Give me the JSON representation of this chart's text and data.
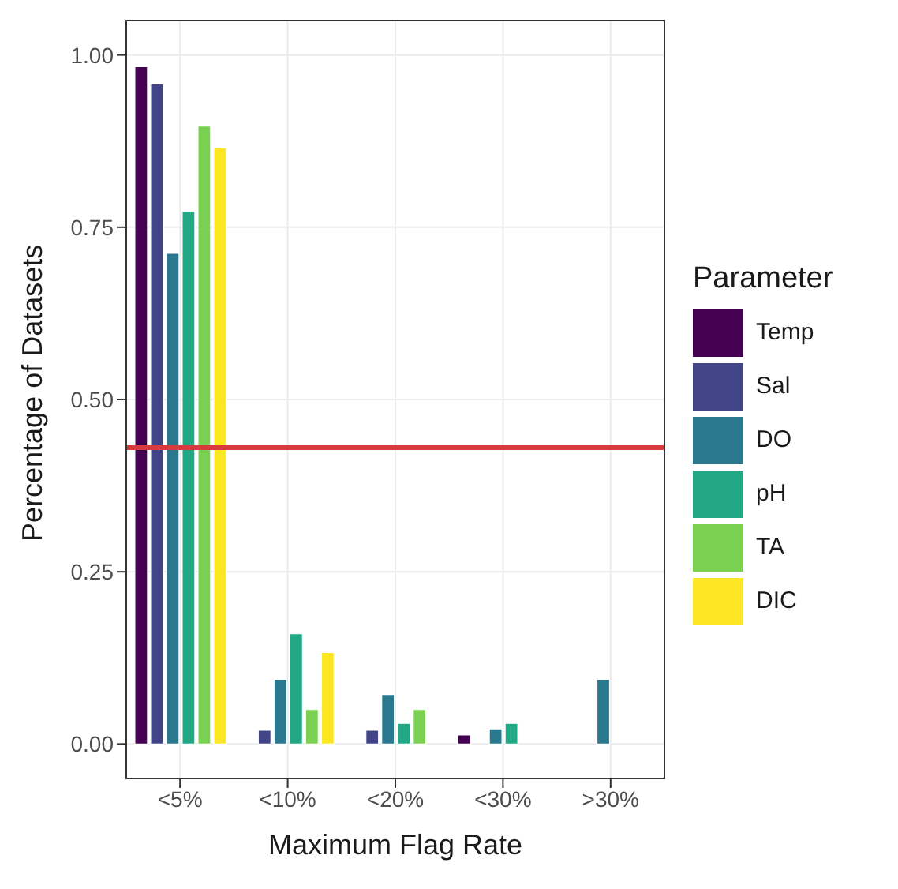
{
  "chart_data": {
    "type": "bar",
    "xlabel": "Maximum Flag Rate",
    "ylabel": "Percentage of Datasets",
    "legend_title": "Parameter",
    "categories": [
      "<5%",
      "<10%",
      "<20%",
      "<30%",
      ">30%"
    ],
    "series": [
      {
        "name": "Temp",
        "color": "#440154",
        "values": [
          0.983,
          null,
          null,
          0.013,
          null
        ]
      },
      {
        "name": "Sal",
        "color": "#414487",
        "values": [
          0.958,
          0.02,
          0.02,
          null,
          null
        ]
      },
      {
        "name": "DO",
        "color": "#2a788e",
        "values": [
          0.712,
          0.094,
          0.072,
          0.022,
          0.094
        ]
      },
      {
        "name": "pH",
        "color": "#22a884",
        "values": [
          0.773,
          0.16,
          0.03,
          0.03,
          null
        ]
      },
      {
        "name": "TA",
        "color": "#7ad151",
        "values": [
          0.897,
          0.05,
          0.05,
          null,
          null
        ]
      },
      {
        "name": "DIC",
        "color": "#fde725",
        "values": [
          0.865,
          0.133,
          null,
          null,
          null
        ]
      }
    ],
    "ylim": [
      -0.05,
      1.05
    ],
    "yticks": [
      {
        "value": 0,
        "label": "0.00"
      },
      {
        "value": 0.25,
        "label": "0.25"
      },
      {
        "value": 0.5,
        "label": "0.50"
      },
      {
        "value": 0.75,
        "label": "0.75"
      },
      {
        "value": 1,
        "label": "1.00"
      }
    ],
    "ref_lines": [
      {
        "axis": "y",
        "value": 0.43,
        "color": "#d73a3f"
      }
    ],
    "grid": true,
    "legend": "right"
  }
}
